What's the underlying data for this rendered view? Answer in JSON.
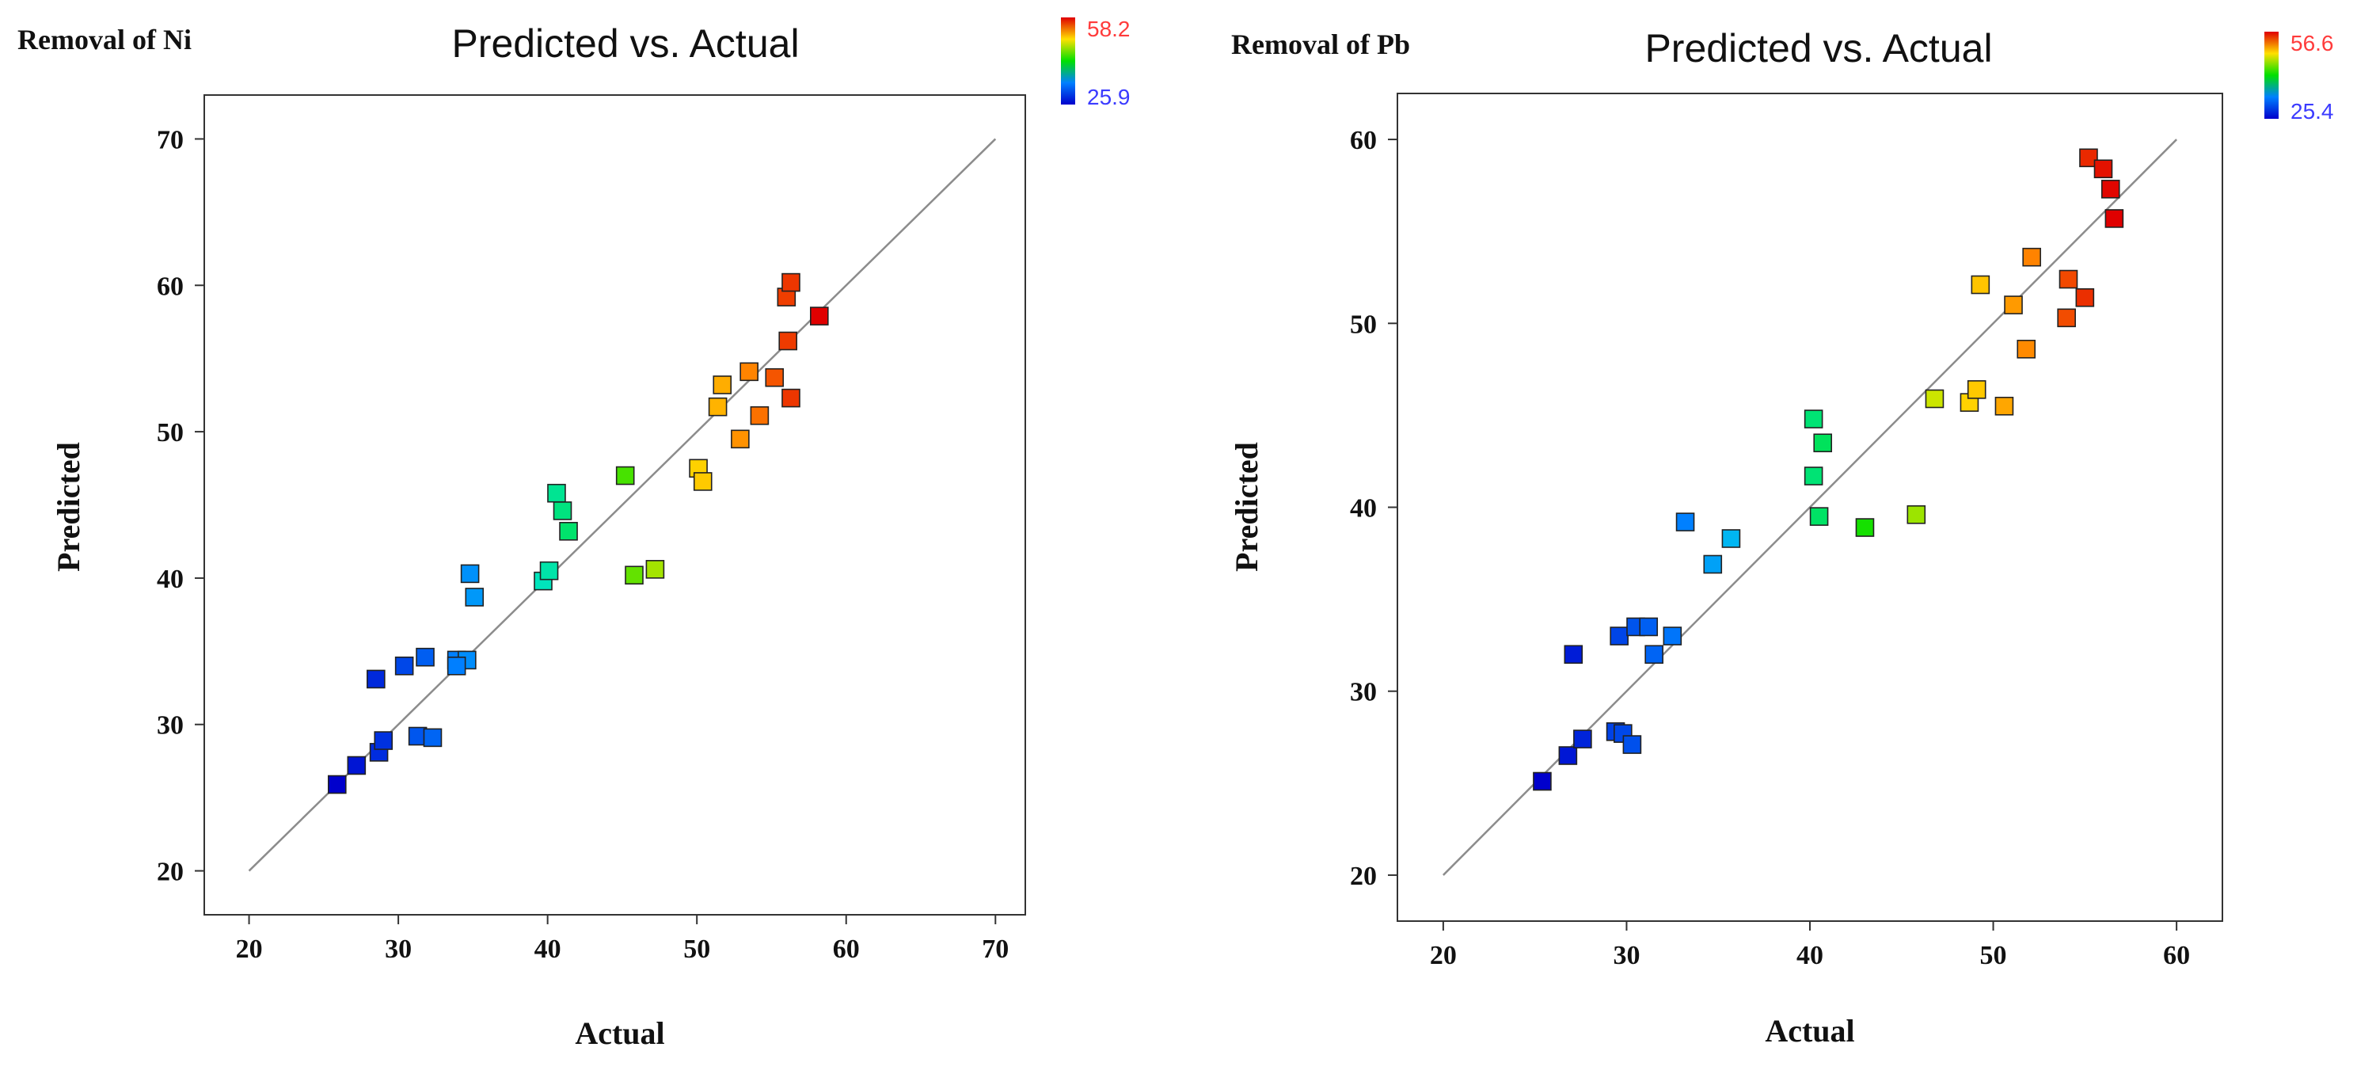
{
  "chart_data": [
    {
      "type": "scatter",
      "panel_label": "Removal of Ni",
      "title": "Predicted vs. Actual",
      "xlabel": "Actual",
      "ylabel": "Predicted",
      "xlim": [
        17,
        72
      ],
      "ylim": [
        17,
        73
      ],
      "xticks": [
        20,
        30,
        40,
        50,
        60,
        70
      ],
      "yticks": [
        20,
        30,
        40,
        50,
        60,
        70
      ],
      "reference_line": {
        "from": [
          20,
          20
        ],
        "to": [
          70,
          70
        ]
      },
      "colorbar": {
        "min": 25.9,
        "max": 58.2,
        "min_label": "25.9",
        "max_label": "58.2",
        "min_color": "#3b3bff",
        "max_color": "#ff3b3b"
      },
      "points": [
        [
          25.9,
          25.9
        ],
        [
          27.2,
          27.2
        ],
        [
          28.7,
          28.1
        ],
        [
          29.0,
          28.9
        ],
        [
          28.5,
          33.1
        ],
        [
          30.4,
          34.0
        ],
        [
          31.8,
          34.6
        ],
        [
          31.3,
          29.2
        ],
        [
          32.3,
          29.1
        ],
        [
          33.9,
          34.4
        ],
        [
          34.6,
          34.4
        ],
        [
          33.9,
          34.0
        ],
        [
          34.8,
          40.3
        ],
        [
          35.1,
          38.7
        ],
        [
          39.7,
          39.8
        ],
        [
          40.1,
          40.5
        ],
        [
          40.6,
          45.8
        ],
        [
          41.0,
          44.6
        ],
        [
          41.4,
          43.2
        ],
        [
          45.2,
          47.0
        ],
        [
          45.8,
          40.2
        ],
        [
          47.2,
          40.6
        ],
        [
          50.1,
          47.5
        ],
        [
          50.4,
          46.6
        ],
        [
          51.4,
          51.7
        ],
        [
          51.7,
          53.2
        ],
        [
          52.9,
          49.5
        ],
        [
          53.5,
          54.1
        ],
        [
          54.2,
          51.1
        ],
        [
          55.2,
          53.7
        ],
        [
          56.1,
          56.2
        ],
        [
          56.0,
          59.2
        ],
        [
          56.3,
          60.2
        ],
        [
          56.3,
          52.3
        ],
        [
          58.2,
          57.9
        ]
      ]
    },
    {
      "type": "scatter",
      "panel_label": "Removal of Pb",
      "title": "Predicted vs. Actual",
      "xlabel": "Actual",
      "ylabel": "Predicted",
      "xlim": [
        17.5,
        62.5
      ],
      "ylim": [
        17.5,
        62.5
      ],
      "xticks": [
        20,
        30,
        40,
        50,
        60
      ],
      "yticks": [
        20,
        30,
        40,
        50,
        60
      ],
      "reference_line": {
        "from": [
          20,
          20
        ],
        "to": [
          60,
          60
        ]
      },
      "colorbar": {
        "min": 25.4,
        "max": 56.6,
        "min_label": "25.4",
        "max_label": "56.6",
        "min_color": "#3b3bff",
        "max_color": "#ff3b3b"
      },
      "points": [
        [
          25.4,
          25.1
        ],
        [
          26.8,
          26.5
        ],
        [
          27.6,
          27.4
        ],
        [
          27.1,
          32.0
        ],
        [
          29.4,
          27.8
        ],
        [
          29.8,
          27.7
        ],
        [
          30.3,
          27.1
        ],
        [
          29.6,
          33.0
        ],
        [
          30.5,
          33.5
        ],
        [
          31.2,
          33.5
        ],
        [
          31.5,
          32.0
        ],
        [
          32.5,
          33.0
        ],
        [
          33.2,
          39.2
        ],
        [
          34.7,
          36.9
        ],
        [
          35.7,
          38.3
        ],
        [
          40.2,
          41.7
        ],
        [
          40.2,
          44.8
        ],
        [
          40.7,
          43.5
        ],
        [
          40.5,
          39.5
        ],
        [
          43.0,
          38.9
        ],
        [
          45.8,
          39.6
        ],
        [
          46.8,
          45.9
        ],
        [
          48.7,
          45.7
        ],
        [
          49.1,
          46.4
        ],
        [
          49.3,
          52.1
        ],
        [
          50.6,
          45.5
        ],
        [
          51.1,
          51.0
        ],
        [
          51.8,
          48.6
        ],
        [
          52.1,
          53.6
        ],
        [
          54.0,
          50.3
        ],
        [
          54.1,
          52.4
        ],
        [
          55.0,
          51.4
        ],
        [
          55.2,
          59.0
        ],
        [
          56.0,
          58.4
        ],
        [
          56.4,
          57.3
        ],
        [
          56.6,
          55.7
        ]
      ]
    }
  ]
}
